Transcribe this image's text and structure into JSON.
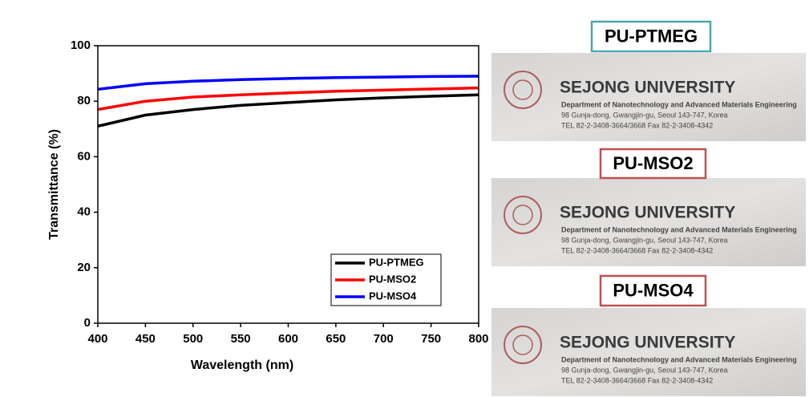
{
  "chart_data": {
    "type": "line",
    "xlabel": "Wavelength (nm)",
    "ylabel": "Transmittance (%)",
    "x": [
      400,
      450,
      500,
      550,
      600,
      650,
      700,
      750,
      800
    ],
    "series": [
      {
        "name": "PU-PTMEG",
        "color": "#000000",
        "values": [
          71,
          75,
          77,
          78.5,
          79.5,
          80.5,
          81.2,
          81.8,
          82.3
        ]
      },
      {
        "name": "PU-MSO2",
        "color": "#ff0000",
        "values": [
          77,
          80,
          81.5,
          82.3,
          83,
          83.6,
          84,
          84.4,
          84.8
        ]
      },
      {
        "name": "PU-MSO4",
        "color": "#0000ff",
        "values": [
          84.3,
          86.3,
          87.2,
          87.8,
          88.2,
          88.5,
          88.7,
          88.9,
          89
        ]
      }
    ],
    "xlim": [
      400,
      800
    ],
    "xticks": [
      400,
      450,
      500,
      550,
      600,
      650,
      700,
      750,
      800
    ],
    "ylim": [
      0,
      100
    ],
    "yticks": [
      0,
      20,
      40,
      60,
      80,
      100
    ],
    "grid": false,
    "legend": "lower right"
  },
  "photos": [
    {
      "label": "PU-PTMEG",
      "border": "#4aa6b0",
      "heading": "SEJONG UNIVERSITY",
      "lines": [
        "Department of Nanotechnology and Advanced Materials Engineering",
        "98 Gunja-dong, Gwangjin-gu, Seoul 143-747, Korea",
        "TEL 82-2-3408-3664/3668  Fax 82-2-3408-4342"
      ]
    },
    {
      "label": "PU-MSO2",
      "border": "#c0504d",
      "heading": "SEJONG UNIVERSITY",
      "lines": [
        "Department of Nanotechnology and Advanced Materials Engineering",
        "98 Gunja-dong, Gwangjin-gu, Seoul 143-747, Korea",
        "TEL 82-2-3408-3664/3668  Fax 82-2-3408-4342"
      ]
    },
    {
      "label": "PU-MSO4",
      "border": "#c0504d",
      "heading": "SEJONG UNIVERSITY",
      "lines": [
        "Department of Nanotechnology and Advanced Materials Engineering",
        "98 Gunja-dong, Gwangjin-gu, Seoul 143-747, Korea",
        "TEL 82-2-3408-3664/3668  Fax 82-2-3408-4342"
      ]
    }
  ]
}
